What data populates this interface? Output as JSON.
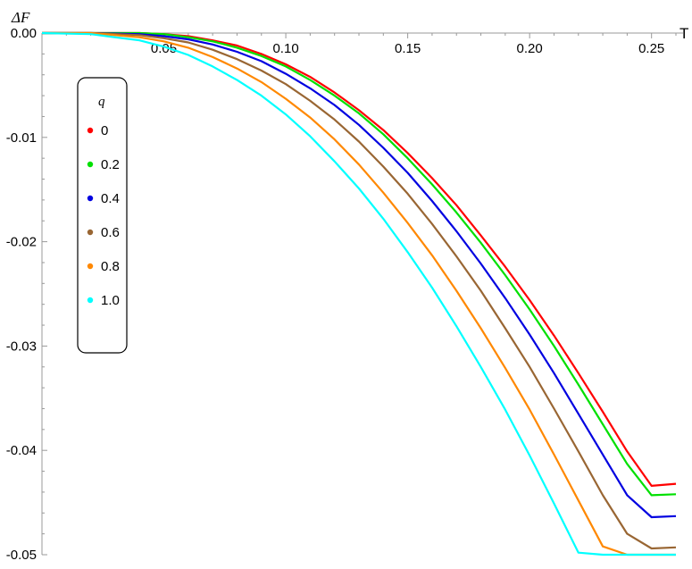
{
  "chart_data": {
    "type": "line",
    "xlabel": "T",
    "ylabel": "ΔF",
    "xlim": [
      0.0,
      0.26
    ],
    "ylim": [
      -0.05,
      0.0
    ],
    "x_ticks": [
      "0.05",
      "0.10",
      "0.15",
      "0.20",
      "0.25"
    ],
    "y_ticks": [
      "0.00",
      "-0.01",
      "-0.02",
      "-0.03",
      "-0.04",
      "-0.05"
    ],
    "grid": false,
    "legend": {
      "title": "q",
      "placement": "left"
    },
    "x": [
      0.0,
      0.02,
      0.04,
      0.05,
      0.06,
      0.07,
      0.08,
      0.09,
      0.1,
      0.11,
      0.12,
      0.13,
      0.14,
      0.15,
      0.16,
      0.17,
      0.18,
      0.19,
      0.2,
      0.21,
      0.22,
      0.23,
      0.24,
      0.25,
      0.26
    ],
    "series": [
      {
        "name": "0",
        "color": "#ff0000",
        "values": [
          0.0,
          0.0,
          0.0,
          -0.0001,
          -0.0003,
          -0.0007,
          -0.0012,
          -0.002,
          -0.003,
          -0.0042,
          -0.0057,
          -0.0074,
          -0.0093,
          -0.0115,
          -0.0139,
          -0.0165,
          -0.0194,
          -0.0224,
          -0.0256,
          -0.029,
          -0.0326,
          -0.0363,
          -0.0401,
          -0.0434,
          -0.0432
        ]
      },
      {
        "name": "0.2",
        "color": "#00e000",
        "values": [
          0.0,
          0.0,
          0.0,
          -0.0001,
          -0.0004,
          -0.0008,
          -0.0014,
          -0.0022,
          -0.0032,
          -0.0045,
          -0.006,
          -0.0077,
          -0.0097,
          -0.012,
          -0.0145,
          -0.0172,
          -0.0201,
          -0.0232,
          -0.0265,
          -0.03,
          -0.0337,
          -0.0375,
          -0.0413,
          -0.0443,
          -0.0442
        ]
      },
      {
        "name": "0.4",
        "color": "#0000e0",
        "values": [
          0.0,
          0.0,
          -0.0001,
          -0.0003,
          -0.0006,
          -0.0011,
          -0.0018,
          -0.0027,
          -0.0039,
          -0.0053,
          -0.0069,
          -0.0088,
          -0.011,
          -0.0134,
          -0.0161,
          -0.019,
          -0.0221,
          -0.0254,
          -0.0289,
          -0.0326,
          -0.0365,
          -0.0404,
          -0.0443,
          -0.0464,
          -0.0463
        ]
      },
      {
        "name": "0.6",
        "color": "#996633",
        "values": [
          0.0,
          0.0,
          -0.0002,
          -0.0005,
          -0.0009,
          -0.0016,
          -0.0025,
          -0.0036,
          -0.0049,
          -0.0065,
          -0.0083,
          -0.0104,
          -0.0128,
          -0.0154,
          -0.0183,
          -0.0214,
          -0.0247,
          -0.0283,
          -0.032,
          -0.036,
          -0.0401,
          -0.0443,
          -0.048,
          -0.0494,
          -0.0493
        ]
      },
      {
        "name": "0.8",
        "color": "#ff8800",
        "values": [
          0.0,
          0.0,
          -0.0004,
          -0.0008,
          -0.0014,
          -0.0023,
          -0.0034,
          -0.0047,
          -0.0063,
          -0.0081,
          -0.0102,
          -0.0126,
          -0.0153,
          -0.0182,
          -0.0213,
          -0.0247,
          -0.0283,
          -0.0321,
          -0.0361,
          -0.0404,
          -0.0448,
          -0.0492,
          -0.05,
          -0.05,
          -0.05
        ]
      },
      {
        "name": "1.0",
        "color": "#00ffff",
        "values": [
          0.0,
          -0.0001,
          -0.0007,
          -0.0013,
          -0.0021,
          -0.0032,
          -0.0045,
          -0.006,
          -0.0078,
          -0.0099,
          -0.0123,
          -0.0149,
          -0.0178,
          -0.021,
          -0.0244,
          -0.0281,
          -0.032,
          -0.0361,
          -0.0405,
          -0.0451,
          -0.0498,
          -0.05,
          -0.05,
          -0.05,
          -0.05
        ]
      }
    ]
  }
}
